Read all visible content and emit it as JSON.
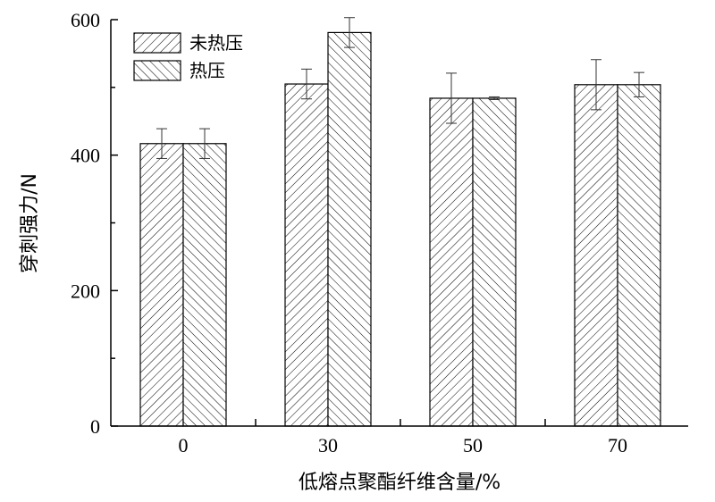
{
  "chart_data": {
    "type": "bar",
    "xlabel": "低熔点聚酯纤维含量/%",
    "ylabel": "穿刺强力/N",
    "ylim": [
      0,
      600
    ],
    "yticks": [
      0,
      200,
      400,
      600
    ],
    "categories": [
      "0",
      "30",
      "50",
      "70"
    ],
    "series": [
      {
        "name": "未热压",
        "pattern": "hatch-forward",
        "values": [
          417,
          505,
          484,
          504
        ],
        "errors": [
          22,
          22,
          37,
          37
        ]
      },
      {
        "name": "热压",
        "pattern": "hatch-back",
        "values": [
          417,
          581,
          484,
          504
        ],
        "errors": [
          22,
          22,
          2,
          18
        ]
      }
    ],
    "legend_position": "top-left",
    "grid": false,
    "colors": {
      "axis": "#000000",
      "bar_fill": "#ffffff",
      "hatch": "#000000"
    }
  }
}
